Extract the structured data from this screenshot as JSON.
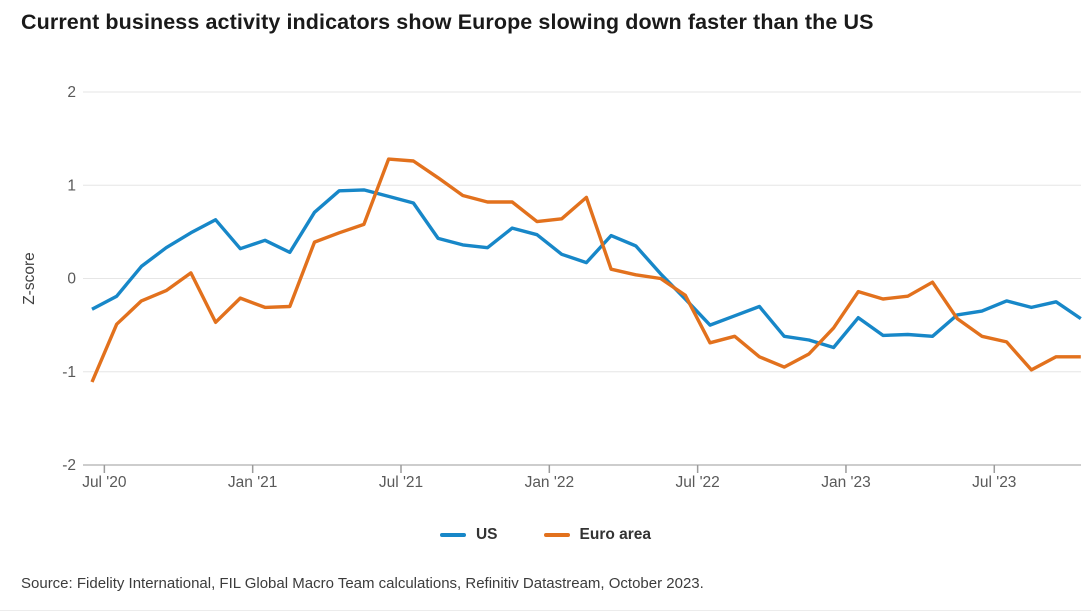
{
  "title": "Current business activity indicators show Europe slowing down faster than the US",
  "source": "Source: Fidelity International, FIL Global Macro Team calculations, Refinitiv Datastream, October 2023.",
  "legend": {
    "items": [
      {
        "label": "US",
        "color": "#1787c8"
      },
      {
        "label": "Euro area",
        "color": "#e2711d"
      }
    ]
  },
  "chart_data": {
    "type": "line",
    "title": "Current business activity indicators show Europe slowing down faster than the US",
    "ylabel": "Z-score",
    "xlabel": "",
    "ylim": [
      -2,
      2
    ],
    "yticks": [
      2,
      1,
      0,
      -1,
      -2
    ],
    "grid": "horizontal",
    "legend_position": "bottom-center",
    "x": [
      "Jun '20",
      "Jul '20",
      "Aug '20",
      "Sep '20",
      "Oct '20",
      "Nov '20",
      "Dec '20",
      "Jan '21",
      "Feb '21",
      "Mar '21",
      "Apr '21",
      "May '21",
      "Jun '21",
      "Jul '21",
      "Aug '21",
      "Sep '21",
      "Oct '21",
      "Nov '21",
      "Dec '21",
      "Jan '22",
      "Feb '22",
      "Mar '22",
      "Apr '22",
      "May '22",
      "Jun '22",
      "Jul '22",
      "Aug '22",
      "Sep '22",
      "Oct '22",
      "Nov '22",
      "Dec '22",
      "Jan '23",
      "Feb '23",
      "Mar '23",
      "Apr '23",
      "May '23",
      "Jun '23",
      "Jul '23",
      "Aug '23",
      "Sep '23",
      "Oct '23"
    ],
    "xticks": {
      "labels": [
        "Jul '20",
        "Jan '21",
        "Jul '21",
        "Jan '22",
        "Jul '22",
        "Jan '23",
        "Jul '23"
      ],
      "month_positions": [
        0.5,
        6.5,
        12.5,
        18.5,
        24.5,
        30.5,
        36.5
      ]
    },
    "series": [
      {
        "name": "US",
        "color": "#1787c8",
        "values": [
          -0.33,
          -0.19,
          0.13,
          0.33,
          0.49,
          0.63,
          0.32,
          0.41,
          0.28,
          0.71,
          0.94,
          0.95,
          0.88,
          0.81,
          0.43,
          0.36,
          0.33,
          0.54,
          0.47,
          0.26,
          0.17,
          0.46,
          0.35,
          0.05,
          -0.22,
          -0.5,
          -0.4,
          -0.3,
          -0.62,
          -0.66,
          -0.74,
          -0.42,
          -0.61,
          -0.6,
          -0.62,
          -0.39,
          -0.35,
          -0.24,
          -0.31,
          -0.25,
          -0.43
        ]
      },
      {
        "name": "Euro area",
        "color": "#e2711d",
        "values": [
          -1.11,
          -0.49,
          -0.24,
          -0.13,
          0.06,
          -0.47,
          -0.21,
          -0.31,
          -0.3,
          0.39,
          0.49,
          0.58,
          1.28,
          1.26,
          1.08,
          0.89,
          0.82,
          0.82,
          0.61,
          0.64,
          0.87,
          0.1,
          0.04,
          0.0,
          -0.18,
          -0.69,
          -0.62,
          -0.84,
          -0.95,
          -0.81,
          -0.53,
          -0.14,
          -0.22,
          -0.19,
          -0.04,
          -0.43,
          -0.62,
          -0.68,
          -0.98,
          -0.84,
          -0.84
        ]
      }
    ],
    "colors": {
      "grid": "#e6e6e6",
      "axis": "#9b9b9b",
      "tick_text": "#595959",
      "axis_label_text": "#404040"
    }
  }
}
